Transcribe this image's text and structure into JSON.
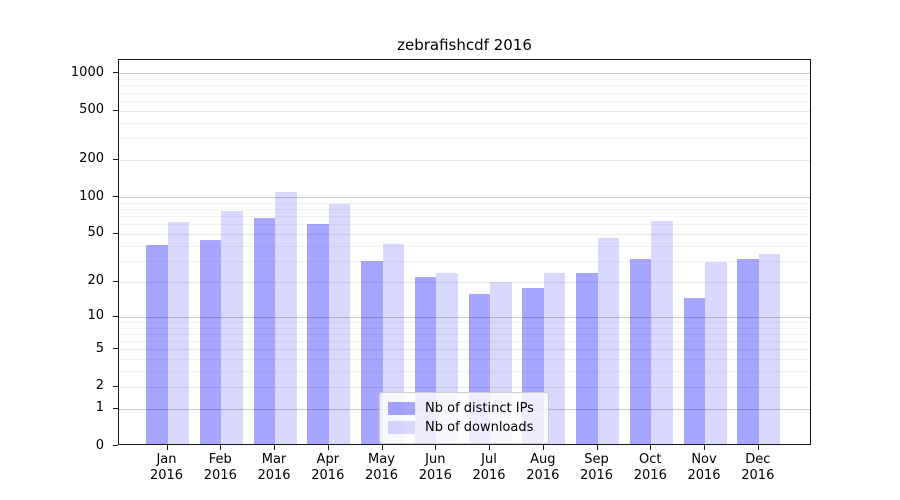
{
  "title": "zebrafishcdf 2016",
  "legend": {
    "entries": [
      {
        "label": "Nb of distinct IPs",
        "color": "rgba(0,0,255,0.35)"
      },
      {
        "label": "Nb of downloads",
        "color": "rgba(0,0,255,0.15)"
      }
    ]
  },
  "chart_data": {
    "type": "bar",
    "title": "zebrafishcdf 2016",
    "categories": [
      "Jan",
      "Feb",
      "Mar",
      "Apr",
      "May",
      "Jun",
      "Jul",
      "Aug",
      "Sep",
      "Oct",
      "Nov",
      "Dec"
    ],
    "year": "2016",
    "series": [
      {
        "name": "Nb of distinct IPs",
        "color": "rgba(0,0,255,0.35)",
        "values": [
          39,
          43,
          65,
          58,
          29,
          21,
          15,
          17,
          23,
          30,
          14,
          30
        ]
      },
      {
        "name": "Nb of downloads",
        "color": "rgba(0,0,255,0.15)",
        "values": [
          60,
          74,
          106,
          85,
          40,
          23,
          19,
          23,
          45,
          62,
          28,
          33
        ]
      }
    ],
    "xlabel": "",
    "ylabel": "",
    "yscale": "log1p",
    "ylim": [
      0,
      1280
    ],
    "yticks": [
      0,
      1,
      2,
      5,
      10,
      20,
      50,
      100,
      200,
      500,
      1000
    ],
    "decade_ticks": [
      1,
      10,
      100,
      1000
    ],
    "grid": "horizontal",
    "legend_position": "lower-center",
    "colors": {
      "grid_major": "#c9c9c9",
      "grid_mid": "#e9e9e9",
      "grid_minor": "#f3f3f3",
      "spine": "#1a1a1a"
    }
  }
}
